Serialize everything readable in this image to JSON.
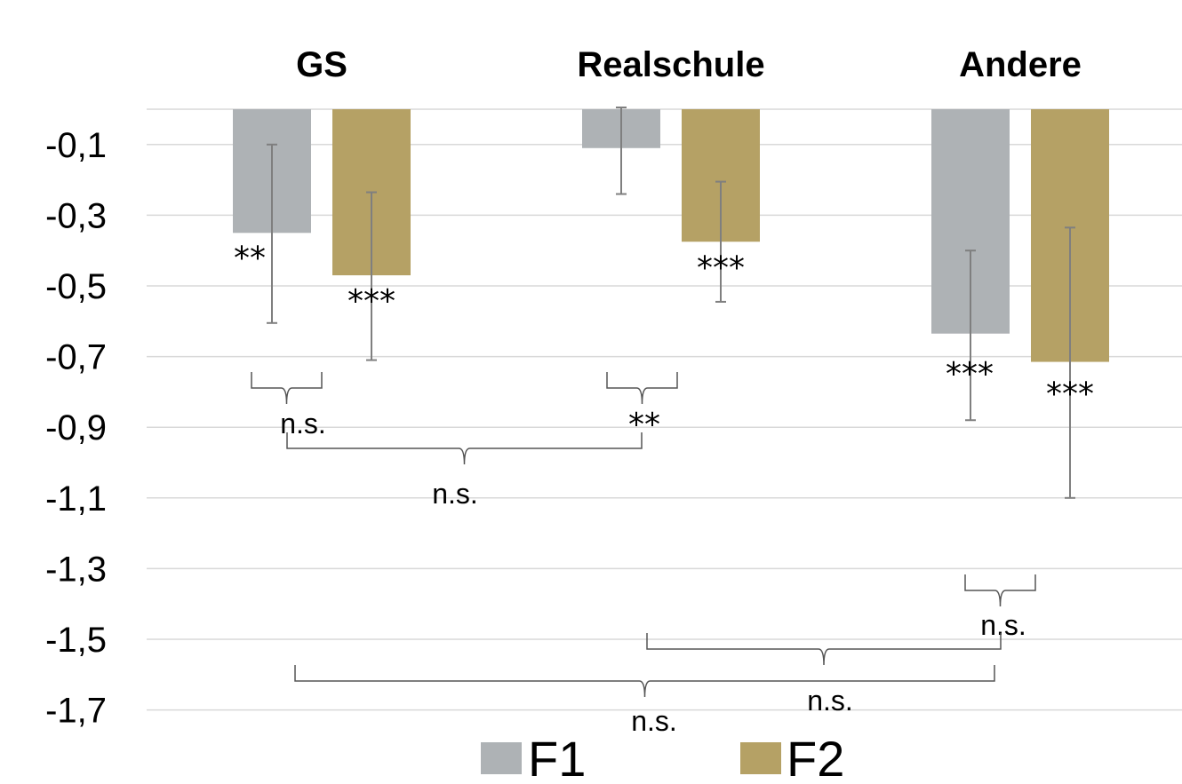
{
  "chart_data": {
    "type": "bar",
    "categories": [
      "GS",
      "Realschule",
      "Andere"
    ],
    "series": [
      {
        "name": "F1",
        "color": "#aeb2b5",
        "values": [
          -0.35,
          -0.11,
          -0.635
        ],
        "err_low": [
          -0.605,
          -0.24,
          -0.88
        ],
        "err_high": [
          -0.1,
          0.005,
          -0.4
        ],
        "sig": [
          "**",
          "",
          "***"
        ]
      },
      {
        "name": "F2",
        "color": "#b5a165",
        "values": [
          -0.47,
          -0.375,
          -0.715
        ],
        "err_low": [
          -0.71,
          -0.545,
          -1.1
        ],
        "err_high": [
          -0.235,
          -0.205,
          -0.335
        ],
        "sig": [
          "***",
          "***",
          "***"
        ]
      }
    ],
    "yticks": [
      "-0,1",
      "-0,3",
      "-0,5",
      "-0,7",
      "-0,9",
      "-1,1",
      "-1,3",
      "-1,5",
      "-1,7"
    ],
    "ytick_values": [
      -0.1,
      -0.3,
      -0.5,
      -0.7,
      -0.9,
      -1.1,
      -1.3,
      -1.5,
      -1.7
    ],
    "ylim": [
      -1.7,
      0
    ],
    "grid": true,
    "legend_position": "bottom",
    "comparisons": [
      {
        "between": "GS F1 vs GS F2",
        "label": "n.s."
      },
      {
        "between": "Realschule F1 vs Realschule F2",
        "label": "**"
      },
      {
        "between": "GS vs Realschule",
        "label": "n.s."
      },
      {
        "between": "Andere F1 vs Andere F2",
        "label": "n.s."
      },
      {
        "between": "Realschule vs Andere",
        "label": "n.s."
      },
      {
        "between": "GS vs Andere",
        "label": "n.s."
      }
    ]
  }
}
